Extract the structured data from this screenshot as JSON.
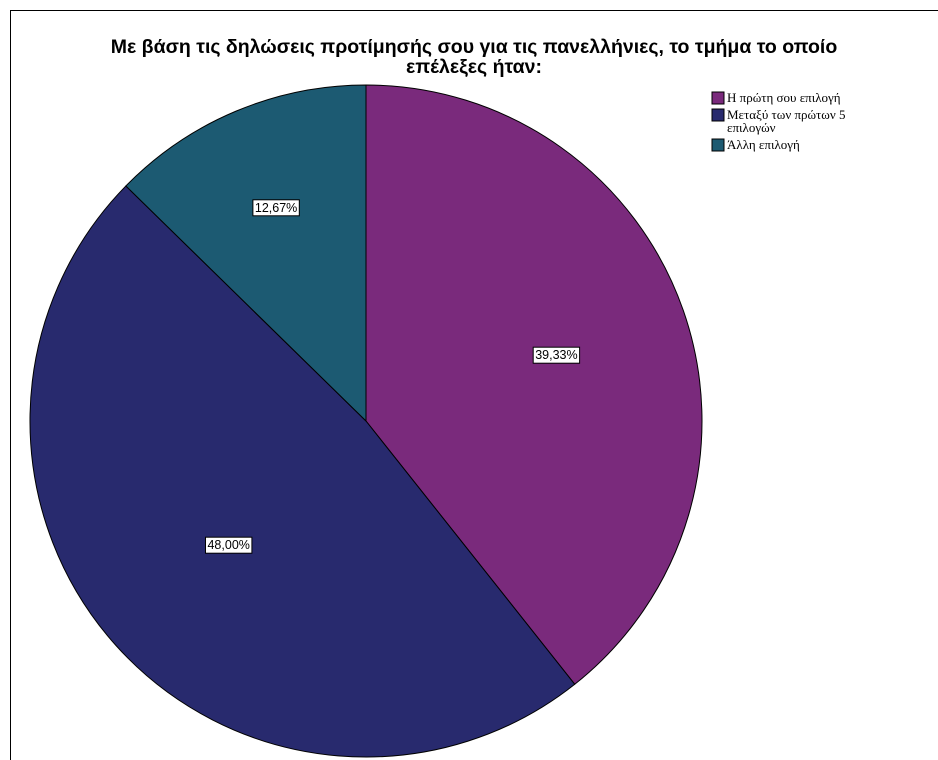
{
  "chart_data": {
    "type": "pie",
    "title_lines": [
      "Με βάση τις δηλώσεις προτίμησής σου για τις πανελλήνιες, το τμήμα το οποίο",
      "επέλεξες ήταν:"
    ],
    "slices": [
      {
        "label_lines": [
          "Η πρώτη σου επιλογή"
        ],
        "value": 39.33,
        "value_label": "39,33%",
        "color": "#7a2a7c"
      },
      {
        "label_lines": [
          "Μεταξύ των πρώτων 5",
          "επιλογών"
        ],
        "value": 48.0,
        "value_label": "48,00%",
        "color": "#282a6e"
      },
      {
        "label_lines": [
          "Άλλη επιλογή"
        ],
        "value": 12.67,
        "value_label": "12,67%",
        "color": "#1c5a72"
      }
    ],
    "start_angle_deg": 0,
    "direction": "clockwise",
    "legend_position": "top-right"
  }
}
